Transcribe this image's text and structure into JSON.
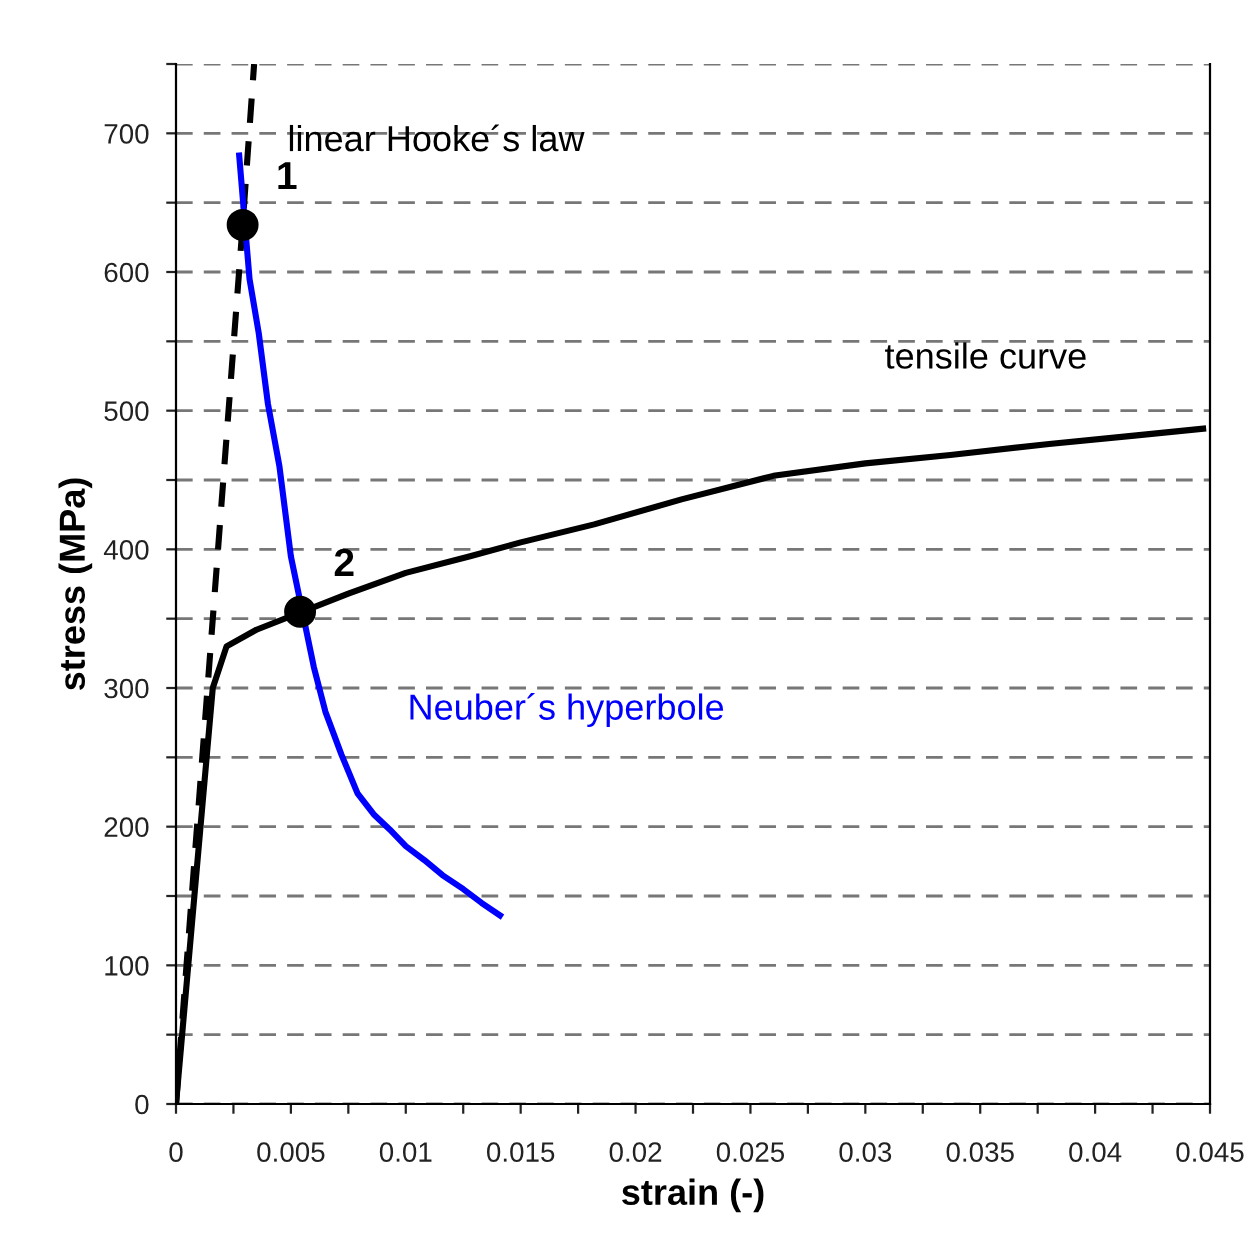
{
  "chart_data": {
    "type": "line",
    "xlabel": "strain (-)",
    "ylabel": "stress (MPa)",
    "xlim": [
      0,
      0.045
    ],
    "ylim": [
      0,
      750
    ],
    "xticks": [
      0,
      {
        "value": 0.0025,
        "label": null
      },
      0.005,
      {
        "value": 0.0075,
        "label": null
      },
      0.01,
      {
        "value": 0.0125,
        "label": null
      },
      0.015,
      {
        "value": 0.0175,
        "label": null
      },
      0.02,
      {
        "value": 0.0225,
        "label": null
      },
      0.025,
      {
        "value": 0.0275,
        "label": null
      },
      0.03,
      {
        "value": 0.0325,
        "label": null
      },
      0.035,
      {
        "value": 0.0375,
        "label": null
      },
      0.04,
      {
        "value": 0.0425,
        "label": null
      },
      0.045
    ],
    "yticks": [
      0,
      {
        "value": 50,
        "label": null
      },
      100,
      {
        "value": 150,
        "label": null
      },
      200,
      {
        "value": 250,
        "label": null
      },
      300,
      {
        "value": 350,
        "label": null
      },
      400,
      {
        "value": 450,
        "label": null
      },
      500,
      {
        "value": 550,
        "label": null
      },
      600,
      {
        "value": 650,
        "label": null
      },
      700,
      {
        "value": 750,
        "label": null
      }
    ],
    "grid": "y",
    "legend": false,
    "series": [
      {
        "name": "linear Hooke´s law",
        "color": "#000000",
        "line_style": "dashed",
        "x": [
          0,
          0.0029,
          0.0034
        ],
        "values": [
          0,
          634,
          750
        ]
      },
      {
        "name": "tensile curve",
        "color": "#000000",
        "line_style": "solid",
        "x": [
          0,
          0.0016,
          0.0022,
          0.0035,
          0.0075,
          0.01,
          0.0128,
          0.015,
          0.0182,
          0.022,
          0.026,
          0.03,
          0.0337,
          0.038,
          0.0417,
          0.0447
        ],
        "values": [
          0,
          300,
          330,
          342,
          368,
          383,
          395,
          405,
          418,
          436,
          453,
          462,
          468,
          476,
          482,
          487
        ]
      },
      {
        "name": "Neuber´s hyperbole",
        "color": "#0000ff",
        "line_style": "solid",
        "x": [
          0.00275,
          0.0032,
          0.0036,
          0.004,
          0.0045,
          0.005,
          0.006,
          0.0065,
          0.0072,
          0.0079,
          0.0086,
          0.0093,
          0.01,
          0.0108,
          0.0116,
          0.0125,
          0.0133,
          0.0141
        ],
        "values": [
          684,
          595,
          556,
          505,
          460,
          395,
          315,
          283,
          252,
          224,
          209,
          198,
          186,
          176,
          165,
          155,
          145,
          136
        ]
      },
      {
        "type": "scatter",
        "color": "#000000",
        "marker": "circle",
        "x": [
          0.0029,
          0.0054
        ],
        "values": [
          634,
          355
        ]
      }
    ],
    "annotations": [
      {
        "text": "1",
        "x": 0.0029,
        "y": 634
      },
      {
        "text": "2",
        "x": 0.0054,
        "y": 355
      }
    ]
  }
}
